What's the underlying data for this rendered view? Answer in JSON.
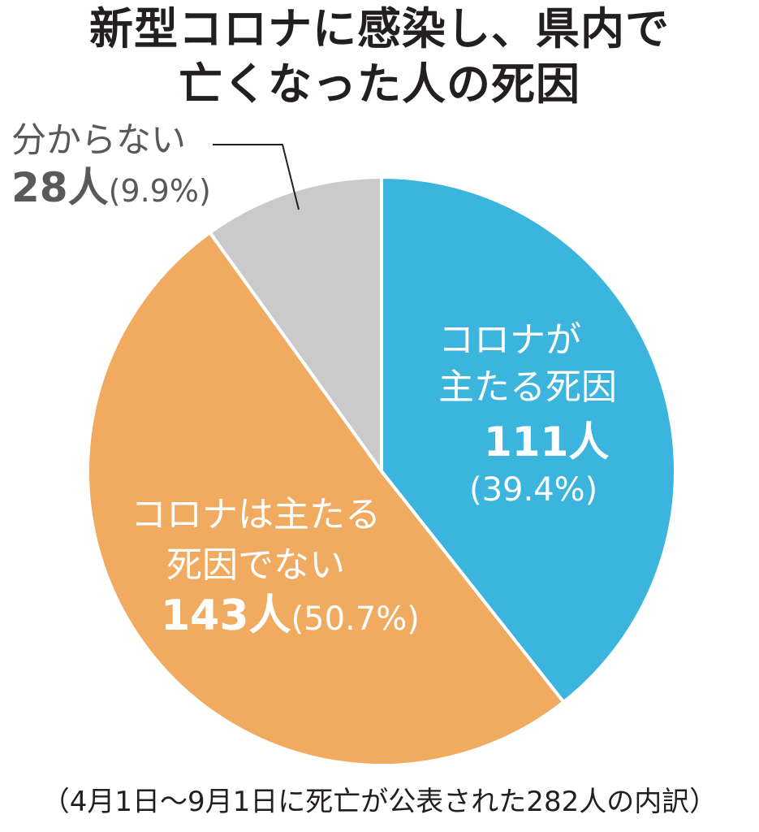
{
  "title": {
    "line1": "新型コロナに感染し、県内で",
    "line2": "亡くなった人の死因"
  },
  "footnote": "（4月1日〜9月1日に死亡が公表された282人の内訳）",
  "colors": {
    "corona_main": "#3bb5de",
    "corona_not_main": "#f0ab60",
    "unknown": "#cacaca",
    "divider": "#ffffff",
    "leader": "#231f20"
  },
  "labels": {
    "corona_main": {
      "name_line1": "コロナが",
      "name_line2": "主たる死因",
      "count": "111人",
      "percent": "(39.4%)"
    },
    "corona_not_main": {
      "name_line1": "コロナは主たる",
      "name_line2": "死因でない",
      "count": "143人",
      "percent": "(50.7%)"
    },
    "unknown": {
      "name": "分からない",
      "count": "28人",
      "percent": "(9.9%)"
    }
  },
  "chart_data": {
    "type": "pie",
    "title": "新型コロナに感染し、県内で亡くなった人の死因",
    "total": 282,
    "unit": "人",
    "start": "top",
    "direction": "clockwise",
    "slices": [
      {
        "key": "corona_main",
        "label": "コロナが主たる死因",
        "value": 111,
        "percent": 39.4,
        "color": "#3bb5de"
      },
      {
        "key": "corona_not_main",
        "label": "コロナは主たる死因でない",
        "value": 143,
        "percent": 50.7,
        "color": "#f0ab60"
      },
      {
        "key": "unknown",
        "label": "分からない",
        "value": 28,
        "percent": 9.9,
        "color": "#cacaca"
      }
    ]
  }
}
